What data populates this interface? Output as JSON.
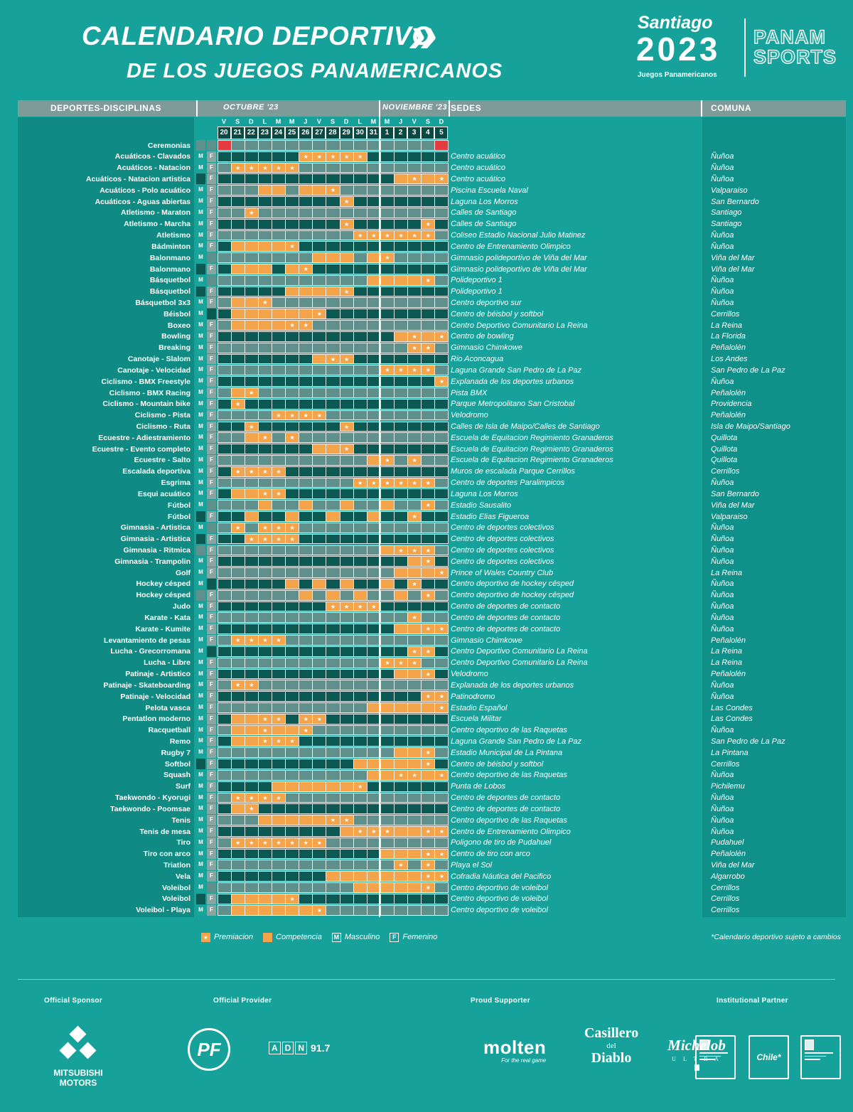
{
  "header": {
    "title_line1": "CALENDARIO DEPORTIVO",
    "title_line2": "DE LOS JUEGOS PANAMERICANOS",
    "chevrons": "»",
    "santiago_logo": {
      "city": "Santiago",
      "year": "2023",
      "sub": "Juegos Panamericanos"
    },
    "panam_logo": {
      "line1": "PANAM",
      "line2": "SPORTS"
    }
  },
  "table": {
    "col_headers": {
      "sports": "DEPORTES-DISCIPLINAS",
      "sedes": "SEDES",
      "comuna": "COMUNA"
    },
    "months": [
      {
        "label": "OCTUBRE '23"
      },
      {
        "label": "NOVIEMBRE '23"
      }
    ],
    "days": [
      {
        "dow": "V",
        "date": "20"
      },
      {
        "dow": "S",
        "date": "21"
      },
      {
        "dow": "D",
        "date": "22"
      },
      {
        "dow": "L",
        "date": "23"
      },
      {
        "dow": "M",
        "date": "24"
      },
      {
        "dow": "M",
        "date": "25"
      },
      {
        "dow": "J",
        "date": "26"
      },
      {
        "dow": "V",
        "date": "27"
      },
      {
        "dow": "S",
        "date": "28"
      },
      {
        "dow": "D",
        "date": "29"
      },
      {
        "dow": "L",
        "date": "30"
      },
      {
        "dow": "M",
        "date": "31"
      },
      {
        "dow": "M",
        "date": "1"
      },
      {
        "dow": "J",
        "date": "2"
      },
      {
        "dow": "V",
        "date": "3"
      },
      {
        "dow": "S",
        "date": "4"
      },
      {
        "dow": "D",
        "date": "5"
      }
    ],
    "cell_legend": "cells: . = empty, C = competencia, P = premiacion(star), R = ceremonia(red)",
    "rows": [
      {
        "sport": "Ceremonias",
        "m": false,
        "f": false,
        "cells": "R...............R",
        "sede": "",
        "comuna": ""
      },
      {
        "sport": "Acuáticos - Clavados",
        "m": true,
        "f": true,
        "cells": "......PPPPP......",
        "sede": "Centro acuático",
        "comuna": "Ñuñoa"
      },
      {
        "sport": "Acuáticos - Natacion",
        "m": true,
        "f": true,
        "cells": ".PPPPP...........",
        "sede": "Centro acuático",
        "comuna": "Ñuñoa"
      },
      {
        "sport": "Acuáticos - Natacion artistica",
        "m": false,
        "f": true,
        "cells": ".............CPCP",
        "sede": "Centro acuático",
        "comuna": "Ñuñoa"
      },
      {
        "sport": "Acuáticos - Polo acuático",
        "m": true,
        "f": true,
        "cells": "...CC.CCP........",
        "sede": "Piscina Escuela Naval",
        "comuna": "Valparaiso"
      },
      {
        "sport": "Acuáticos - Aguas abiertas",
        "m": true,
        "f": true,
        "cells": ".........P.......",
        "sede": "Laguna Los Morros",
        "comuna": "San Bernardo"
      },
      {
        "sport": "Atletismo - Maraton",
        "m": true,
        "f": true,
        "cells": "..P..............",
        "sede": "Calles de Santiago",
        "comuna": "Santiago"
      },
      {
        "sport": "Atletismo - Marcha",
        "m": true,
        "f": true,
        "cells": ".........P.....P.",
        "sede": "Calles de Santiago",
        "comuna": "Santiago"
      },
      {
        "sport": "Atletismo",
        "m": true,
        "f": true,
        "cells": "..........PPPPPP.",
        "sede": "Coliseo Estadio Nacional Julio Matinez",
        "comuna": "Ñuñoa"
      },
      {
        "sport": "Bádminton",
        "m": true,
        "f": true,
        "cells": ".CCCCP...........",
        "sede": "Centro de Entrenamiento Olimpico",
        "comuna": "Ñuñoa"
      },
      {
        "sport": "Balonmano",
        "m": true,
        "f": false,
        "cells": ".......CCC.CP....",
        "sede": "Gimnasio polideportivo de Viña del Mar",
        "comuna": "Viña del Mar"
      },
      {
        "sport": "Balonmano",
        "m": false,
        "f": true,
        "cells": ".CCC.CP..........",
        "sede": "Gimnasio polideportivo de Viña del Mar",
        "comuna": "Viña del Mar"
      },
      {
        "sport": "Básquetbol",
        "m": true,
        "f": false,
        "cells": "...........CCCCP.",
        "sede": "Polideportivo 1",
        "comuna": "Ñuñoa"
      },
      {
        "sport": "Básquetbol",
        "m": false,
        "f": true,
        "cells": ".....CCCCP.......",
        "sede": "Polideportivo 1",
        "comuna": "Ñuñoa"
      },
      {
        "sport": "Básquetbol 3x3",
        "m": true,
        "f": true,
        "cells": ".CCP.............",
        "sede": "Centro deportivo sur",
        "comuna": "Ñuñoa"
      },
      {
        "sport": "Béisbol",
        "m": true,
        "f": false,
        "cells": ".CCCCCCP.........",
        "sede": "Centro de béisbol y softbol",
        "comuna": "Cerrillos"
      },
      {
        "sport": "Boxeo",
        "m": true,
        "f": true,
        "cells": ".CCCCPP..........",
        "sede": "Centro Deportivo Comunitario La Reina",
        "comuna": "La Reina"
      },
      {
        "sport": "Bowling",
        "m": true,
        "f": true,
        "cells": ".............CPCP",
        "sede": "Centro de bowling",
        "comuna": "La Florida"
      },
      {
        "sport": "Breaking",
        "m": true,
        "f": true,
        "cells": "..............PP.",
        "sede": "Gimnasio Chimkowe",
        "comuna": "Peñalolén"
      },
      {
        "sport": "Canotaje - Slalom",
        "m": true,
        "f": true,
        "cells": ".......CPP.......",
        "sede": "Rio Aconcagua",
        "comuna": "Los Andes"
      },
      {
        "sport": "Canotaje - Velocidad",
        "m": true,
        "f": true,
        "cells": "............PPPP.",
        "sede": "Laguna Grande San Pedro de La Paz",
        "comuna": "San Pedro de La Paz"
      },
      {
        "sport": "Ciclismo - BMX Freestyle",
        "m": true,
        "f": true,
        "cells": "................P",
        "sede": "Explanada de los deportes urbanos",
        "comuna": "Ñuñoa"
      },
      {
        "sport": "Ciclismo - BMX Racing",
        "m": true,
        "f": true,
        "cells": ".CP..............",
        "sede": "Pista BMX",
        "comuna": "Peñalolén"
      },
      {
        "sport": "Ciclismo - Mountain bike",
        "m": true,
        "f": true,
        "cells": ".P...............",
        "sede": "Parque Metropolitano San Cristobal",
        "comuna": "Providencia"
      },
      {
        "sport": "Ciclismo - Pista",
        "m": true,
        "f": true,
        "cells": "....PPPP.........",
        "sede": "Velodromo",
        "comuna": "Peñalolén"
      },
      {
        "sport": "Ciclismo - Ruta",
        "m": true,
        "f": true,
        "cells": "..P......P.......",
        "sede": "Calles de Isla de Maipo/Calles de Santiago",
        "comuna": "Isla de Maipo/Santiago"
      },
      {
        "sport": "Ecuestre - Adiestramiento",
        "m": true,
        "f": true,
        "cells": "..CP.P...........",
        "sede": "Escuela de Equitacion Regimiento Granaderos",
        "comuna": "Quillota"
      },
      {
        "sport": "Ecuestre - Evento completo",
        "m": true,
        "f": true,
        "cells": ".......CCP.......",
        "sede": "Escuela de Equitacion Regimiento Granaderos",
        "comuna": "Quillota"
      },
      {
        "sport": "Ecuestre - Salto",
        "m": true,
        "f": true,
        "cells": "...........CP.P..",
        "sede": "Escuela de Equitacion Regimiento Granaderos",
        "comuna": "Quillota"
      },
      {
        "sport": "Escalada deportiva",
        "m": true,
        "f": true,
        "cells": ".PPPP............",
        "sede": "Muros de escalada Parque Cerrillos",
        "comuna": "Cerrillos"
      },
      {
        "sport": "Esgrima",
        "m": true,
        "f": true,
        "cells": "..........PPPPPP.",
        "sede": "Centro de deportes Paralimpicos",
        "comuna": "Ñuñoa"
      },
      {
        "sport": "Esqui acuático",
        "m": true,
        "f": true,
        "cells": ".CCPP............",
        "sede": "Laguna Los Morros",
        "comuna": "San Bernardo"
      },
      {
        "sport": "Fútbol",
        "m": true,
        "f": false,
        "cells": "...C..C..C..C..P.",
        "sede": "Estadio Sausalito",
        "comuna": "Viña del Mar"
      },
      {
        "sport": "Fútbol",
        "m": false,
        "f": true,
        "cells": "..C..C..C..C..P..",
        "sede": "Estadio Elias Figueroa",
        "comuna": "Valparaiso"
      },
      {
        "sport": "Gimnasia - Artistica",
        "m": true,
        "f": false,
        "cells": ".P.PPP...........",
        "sede": "Centro de deportes colectivos",
        "comuna": "Ñuñoa"
      },
      {
        "sport": "Gimnasia - Artistica",
        "m": false,
        "f": true,
        "cells": "..PPPP...........",
        "sede": "Centro de deportes colectivos",
        "comuna": "Ñuñoa"
      },
      {
        "sport": "Gimnasia - Ritmica",
        "m": false,
        "f": true,
        "cells": "............CPPP.",
        "sede": "Centro de deportes colectivos",
        "comuna": "Ñuñoa"
      },
      {
        "sport": "Gimnasia - Trampolin",
        "m": true,
        "f": true,
        "cells": "..............CP.",
        "sede": "Centro de deportes colectivos",
        "comuna": "Ñuñoa"
      },
      {
        "sport": "Golf",
        "m": true,
        "f": true,
        "cells": ".............CCCP",
        "sede": "Prince of Wales Country Club",
        "comuna": "La Reina"
      },
      {
        "sport": "Hockey césped",
        "m": true,
        "f": false,
        "cells": ".....C.C.C..C.P..",
        "sede": "Centro deportivo de hockey césped",
        "comuna": "Ñuñoa"
      },
      {
        "sport": "Hockey césped",
        "m": false,
        "f": true,
        "cells": "......C.C.C..C.P.",
        "sede": "Centro deportivo de hockey césped",
        "comuna": "Ñuñoa"
      },
      {
        "sport": "Judo",
        "m": true,
        "f": true,
        "cells": "........PPPP.....",
        "sede": "Centro de deportes de contacto",
        "comuna": "Ñuñoa"
      },
      {
        "sport": "Karate - Kata",
        "m": true,
        "f": true,
        "cells": "..............P..",
        "sede": "Centro de deportes de contacto",
        "comuna": "Ñuñoa"
      },
      {
        "sport": "Karate - Kumite",
        "m": true,
        "f": true,
        "cells": ".............CCPP",
        "sede": "Centro de deportes de contacto",
        "comuna": "Ñuñoa"
      },
      {
        "sport": "Levantamiento de pesas",
        "m": true,
        "f": true,
        "cells": ".PPPP............",
        "sede": "Gimnasio Chimkowe",
        "comuna": "Peñalolén"
      },
      {
        "sport": "Lucha - Grecorromana",
        "m": true,
        "f": false,
        "cells": "..............PP.",
        "sede": "Centro Deportivo Comunitario La Reina",
        "comuna": "La Reina"
      },
      {
        "sport": "Lucha - Libre",
        "m": true,
        "f": true,
        "cells": "............PPP..",
        "sede": "Centro Deportivo Comunitario La Reina",
        "comuna": "La Reina"
      },
      {
        "sport": "Patinaje - Artistico",
        "m": true,
        "f": true,
        "cells": ".............CCP.",
        "sede": "Velodromo",
        "comuna": "Peñalolén"
      },
      {
        "sport": "Patinaje - Skateboarding",
        "m": true,
        "f": true,
        "cells": ".PP..............",
        "sede": "Explanada de los deportes urbanos",
        "comuna": "Ñuñoa"
      },
      {
        "sport": "Patinaje - Velocidad",
        "m": true,
        "f": true,
        "cells": "...............PP",
        "sede": "Patinodromo",
        "comuna": "Ñuñoa"
      },
      {
        "sport": "Pelota vasca",
        "m": true,
        "f": true,
        "cells": "...........CCCCCP",
        "sede": "Estadio Español",
        "comuna": "Las Condes"
      },
      {
        "sport": "Pentatlon moderno",
        "m": true,
        "f": true,
        "cells": ".CCPP.PP.........",
        "sede": "Escuela Militar",
        "comuna": "Las Condes"
      },
      {
        "sport": "Racquetball",
        "m": true,
        "f": true,
        "cells": ".CCPCCP..........",
        "sede": "Centro deportivo de las Raquetas",
        "comuna": "Ñuñoa"
      },
      {
        "sport": "Remo",
        "m": true,
        "f": true,
        "cells": ".CCPPP...........",
        "sede": "Laguna Grande San Pedro de La Paz",
        "comuna": "San Pedro de La Paz"
      },
      {
        "sport": "Rugby 7",
        "m": true,
        "f": true,
        "cells": ".............CCP.",
        "sede": "Estadio Municipal de La Pintana",
        "comuna": "La Pintana"
      },
      {
        "sport": "Softbol",
        "m": false,
        "f": true,
        "cells": "..........CCCCCP.",
        "sede": "Centro de béisbol y softbol",
        "comuna": "Cerrillos"
      },
      {
        "sport": "Squash",
        "m": true,
        "f": true,
        "cells": "...........CCPPCP",
        "sede": "Centro deportivo de las Raquetas",
        "comuna": "Ñuñoa"
      },
      {
        "sport": "Surf",
        "m": true,
        "f": true,
        "cells": "....CCCCCCP......",
        "sede": "Punta de Lobos",
        "comuna": "Pichilemu"
      },
      {
        "sport": "Taekwondo - Kyorugi",
        "m": true,
        "f": true,
        "cells": ".PPPP............",
        "sede": "Centro de deportes de contacto",
        "comuna": "Ñuñoa"
      },
      {
        "sport": "Taekwondo - Poomsae",
        "m": true,
        "f": true,
        "cells": ".CP..............",
        "sede": "Centro de deportes de contacto",
        "comuna": "Ñuñoa"
      },
      {
        "sport": "Tenis",
        "m": true,
        "f": true,
        "cells": "...CCCCCPP.......",
        "sede": "Centro deportivo de las Raquetas",
        "comuna": "Ñuñoa"
      },
      {
        "sport": "Tenis de mesa",
        "m": true,
        "f": true,
        "cells": ".........CPPPCCPP",
        "sede": "Centro de Entrenamiento Olimpico",
        "comuna": "Ñuñoa"
      },
      {
        "sport": "Tiro",
        "m": true,
        "f": true,
        "cells": ".PPPPPPP.........",
        "sede": "Poligono de tiro de Pudahuel",
        "comuna": "Pudahuel"
      },
      {
        "sport": "Tiro con arco",
        "m": true,
        "f": true,
        "cells": "............CCCPP",
        "sede": "Centro de tiro con arco",
        "comuna": "Peñalolén"
      },
      {
        "sport": "Triatlon",
        "m": true,
        "f": true,
        "cells": ".............P.P.",
        "sede": "Playa el Sol",
        "comuna": "Viña del Mar"
      },
      {
        "sport": "Vela",
        "m": true,
        "f": true,
        "cells": "........CCCCCCCPP",
        "sede": "Cofradia Náutica del Pacifico",
        "comuna": "Algarrobo"
      },
      {
        "sport": "Voleibol",
        "m": true,
        "f": false,
        "cells": "..........CCCCCP.",
        "sede": "Centro deportivo de voleibol",
        "comuna": "Cerrillos"
      },
      {
        "sport": "Voleibol",
        "m": false,
        "f": true,
        "cells": ".CCCCP...........",
        "sede": "Centro deportivo de voleibol",
        "comuna": "Cerrillos"
      },
      {
        "sport": "Voleibol - Playa",
        "m": true,
        "f": true,
        "cells": ".CCCCCCP.........",
        "sede": "Centro deportivo de voleibol",
        "comuna": "Cerrillos"
      }
    ]
  },
  "legend": {
    "premiacion": "Premiacion",
    "competencia": "Competencia",
    "masculino": "Masculino",
    "femenino": "Femenino",
    "m_letter": "M",
    "f_letter": "F",
    "star": "★"
  },
  "note": "*Calendario deportivo sujeto a cambios",
  "footer": {
    "official_sponsor_label": "Official Sponsor",
    "official_provider_label": "Official Provider",
    "proud_supporter_label": "Proud Supporter",
    "institutional_partner_label": "Institutional Partner",
    "mitsubishi": "MITSUBISHI MOTORS",
    "pf": "PF",
    "adn": {
      "a": "A",
      "d": "D",
      "n": "N",
      "num": "91.7"
    },
    "molten": {
      "name": "molten",
      "tagline": "For the real game"
    },
    "casillero": {
      "l1": "Casillero",
      "l2": "del",
      "l3": "Diablo"
    },
    "michelob": {
      "l1": "Michelob",
      "l2": "U L T R A"
    },
    "chile": "Chile*"
  },
  "colors": {
    "background": "#16a29a",
    "left_panel": "#0f8b83",
    "comuna_panel": "#0f9089",
    "header_band": "#7f9b98",
    "stripe_light": "#60908c",
    "stripe_dark": "#0c5953",
    "date_box": "#094a44",
    "orange": "#f4a44b",
    "red": "#e33b3f",
    "badge_m": "#18a49a",
    "badge_f": "#8ba4a1",
    "white": "#ffffff"
  }
}
